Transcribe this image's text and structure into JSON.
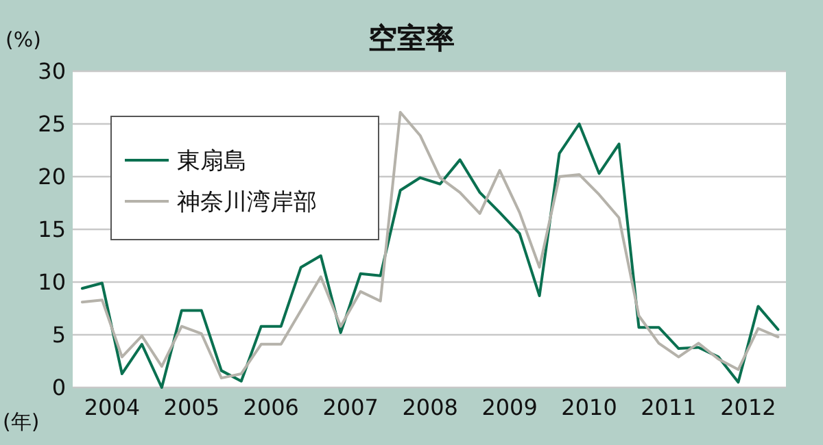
{
  "chart_data": {
    "type": "line",
    "title": "空室率",
    "ylabel": "(%)",
    "xlabel": "(年)",
    "x": [
      2004,
      2004.25,
      2004.5,
      2004.75,
      2005,
      2005.25,
      2005.5,
      2005.75,
      2006,
      2006.25,
      2006.5,
      2006.75,
      2007,
      2007.25,
      2007.5,
      2007.75,
      2008,
      2008.25,
      2008.5,
      2008.75,
      2009,
      2009.25,
      2009.5,
      2009.75,
      2010,
      2010.25,
      2010.5,
      2010.75,
      2011,
      2011.25,
      2011.5,
      2011.75,
      2012,
      2012.25,
      2012.5,
      2012.75
    ],
    "series": [
      {
        "name": "東扇島",
        "color": "#0a7050",
        "values": [
          9.4,
          9.9,
          1.3,
          4.1,
          0,
          7.3,
          7.3,
          1.6,
          0.6,
          5.8,
          5.8,
          11.4,
          12.5,
          5.2,
          10.8,
          10.6,
          18.7,
          19.9,
          19.3,
          21.6,
          18.5,
          16.6,
          14.6,
          8.7,
          22.2,
          25.0,
          20.3,
          23.1,
          5.7,
          5.7,
          3.7,
          3.8,
          2.9,
          0.5,
          7.7,
          5.5
        ]
      },
      {
        "name": "神奈川湾岸部",
        "color": "#b5b2aa",
        "values": [
          8.1,
          8.3,
          2.9,
          4.9,
          2.0,
          5.8,
          5.1,
          0.9,
          1.3,
          4.1,
          4.1,
          7.3,
          10.5,
          5.8,
          9.1,
          8.2,
          26.1,
          23.9,
          19.9,
          18.5,
          16.5,
          20.6,
          16.6,
          11.4,
          20.0,
          20.2,
          18.3,
          16.1,
          6.8,
          4.2,
          2.9,
          4.2,
          2.7,
          1.7,
          5.6,
          4.8
        ]
      }
    ],
    "xlim": [
      2003.88,
      2012.85
    ],
    "xticks": [
      {
        "value": 2004.375,
        "label": "2004"
      },
      {
        "value": 2005.375,
        "label": "2005"
      },
      {
        "value": 2006.375,
        "label": "2006"
      },
      {
        "value": 2007.375,
        "label": "2007"
      },
      {
        "value": 2008.375,
        "label": "2008"
      },
      {
        "value": 2009.375,
        "label": "2009"
      },
      {
        "value": 2010.375,
        "label": "2010"
      },
      {
        "value": 2011.375,
        "label": "2011"
      },
      {
        "value": 2012.375,
        "label": "2012"
      }
    ],
    "ylim": [
      0,
      30
    ],
    "yticks": [
      0,
      5,
      10,
      15,
      20,
      25,
      30
    ],
    "grid": "y",
    "legend": "top left",
    "marker": "none",
    "line_style": "solid"
  }
}
